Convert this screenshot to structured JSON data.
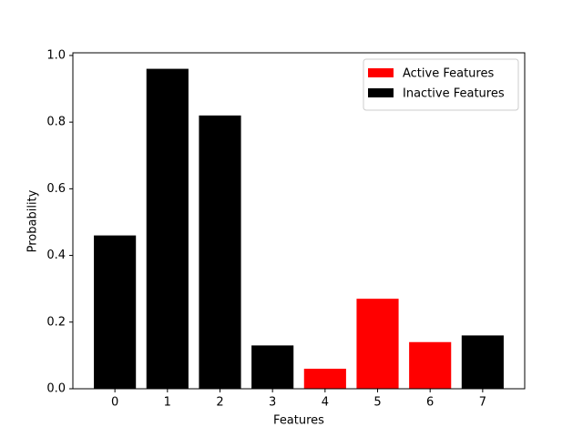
{
  "chart_data": {
    "type": "bar",
    "x_label": "Features",
    "y_label": "Probability",
    "x": [
      0,
      1,
      2,
      3,
      4,
      5,
      6,
      7
    ],
    "series": [
      {
        "name": "Active Features",
        "color": "#ff0000",
        "values": [
          null,
          null,
          null,
          null,
          0.06,
          0.27,
          0.14,
          null
        ]
      },
      {
        "name": "Inactive Features",
        "color": "#000000",
        "values": [
          0.46,
          0.96,
          0.82,
          0.13,
          null,
          null,
          null,
          0.16
        ]
      }
    ],
    "bar_width": 0.8,
    "xlim": [
      -0.8,
      7.8
    ],
    "xticks": [
      0,
      1,
      2,
      3,
      4,
      5,
      6,
      7
    ],
    "ylim": [
      0,
      1.008
    ],
    "yticks": [
      {
        "value": 0,
        "label": "0.0"
      },
      {
        "value": 0.2,
        "label": "0.2"
      },
      {
        "value": 0.4,
        "label": "0.4"
      },
      {
        "value": 0.6,
        "label": "0.6"
      },
      {
        "value": 0.8,
        "label": "0.8"
      },
      {
        "value": 1.0,
        "label": "1.0"
      }
    ],
    "legend": "upper right",
    "grid": false
  }
}
